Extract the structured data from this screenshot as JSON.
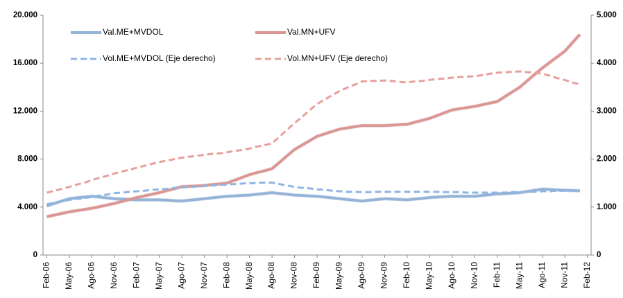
{
  "chart_data": {
    "type": "line",
    "categories": [
      "Feb-06",
      null,
      null,
      "May-06",
      null,
      null,
      "Ago-06",
      null,
      null,
      "Nov-06",
      null,
      null,
      "Feb-07",
      null,
      null,
      "May-07",
      null,
      null,
      "Ago-07",
      null,
      null,
      "Nov-07",
      null,
      null,
      "Feb-08",
      null,
      null,
      "May-08",
      null,
      null,
      "Ago-08",
      null,
      null,
      "Nov-08",
      null,
      null,
      "Feb-09",
      null,
      null,
      "May-09",
      null,
      null,
      "Ago-09",
      null,
      null,
      "Nov-09",
      null,
      null,
      "Feb-10",
      null,
      null,
      "May-10",
      null,
      null,
      "Ago-10",
      null,
      null,
      "Nov-10",
      null,
      null,
      "Feb-11",
      null,
      null,
      "May-11",
      null,
      null,
      "Ago-11",
      null,
      null,
      "Nov-11",
      null,
      null,
      "Feb-12"
    ],
    "series": [
      {
        "name": "Val.ME+MVDOL",
        "color": "#95b3d7",
        "style": "solid",
        "values": [
          4100,
          4300,
          4500,
          4700,
          4770,
          4830,
          4900,
          4830,
          4770,
          4700,
          4670,
          4630,
          4600,
          4600,
          4600,
          4600,
          4570,
          4530,
          4500,
          4570,
          4630,
          4700,
          4770,
          4830,
          4900,
          4930,
          4970,
          5000,
          5070,
          5130,
          5200,
          5130,
          5070,
          5000,
          4970,
          4930,
          4900,
          4830,
          4770,
          4700,
          4630,
          4570,
          4500,
          4570,
          4630,
          4700,
          4670,
          4630,
          4600,
          4670,
          4730,
          4800,
          4830,
          4870,
          4900,
          4900,
          4900,
          4900,
          4970,
          5030,
          5100,
          5130,
          5170,
          5200,
          5300,
          5400,
          5500,
          5470,
          5430,
          5400,
          5380,
          5350,
          null
        ]
      },
      {
        "name": "Val.MN+UFV",
        "color": "#d99694",
        "style": "solid",
        "values": [
          3200,
          3330,
          3470,
          3600,
          3700,
          3800,
          3900,
          4030,
          4170,
          4300,
          4470,
          4630,
          4800,
          4930,
          5070,
          5200,
          5370,
          5530,
          5700,
          5730,
          5770,
          5800,
          5870,
          5930,
          6000,
          6230,
          6470,
          6700,
          6870,
          7030,
          7200,
          7730,
          8270,
          8800,
          9170,
          9530,
          9900,
          10100,
          10300,
          10500,
          10600,
          10700,
          10800,
          10800,
          10800,
          10800,
          10830,
          10870,
          10900,
          11070,
          11230,
          11400,
          11630,
          11870,
          12100,
          12200,
          12300,
          12400,
          12530,
          12670,
          12800,
          13200,
          13600,
          14000,
          14530,
          15070,
          15600,
          16070,
          16530,
          17000,
          17700,
          18400,
          null
        ]
      },
      {
        "name": "Vol.ME+MVDOL (Eje derecho)",
        "color": "#8eb4e3",
        "style": "dashed",
        "axis": "y2",
        "values": [
          1060,
          1090,
          1120,
          1150,
          1170,
          1190,
          1210,
          1240,
          1260,
          1290,
          1300,
          1320,
          1330,
          1340,
          1360,
          1370,
          1380,
          1400,
          1410,
          1420,
          1430,
          1440,
          1450,
          1460,
          1470,
          1480,
          1490,
          1500,
          1500,
          1510,
          1510,
          1480,
          1450,
          1420,
          1400,
          1390,
          1370,
          1360,
          1340,
          1330,
          1320,
          1320,
          1310,
          1310,
          1320,
          1320,
          1320,
          1320,
          1320,
          1320,
          1320,
          1320,
          1320,
          1310,
          1310,
          1310,
          1300,
          1300,
          1300,
          1300,
          1300,
          1300,
          1310,
          1310,
          1320,
          1320,
          1330,
          1330,
          1340,
          1340,
          1340,
          1340,
          null
        ]
      },
      {
        "name": "Vol.MN+UFV (Eje derecho)",
        "color": "#e6a09c",
        "style": "dashed",
        "axis": "y2",
        "values": [
          1300,
          1340,
          1380,
          1420,
          1470,
          1510,
          1560,
          1610,
          1650,
          1700,
          1740,
          1780,
          1820,
          1860,
          1900,
          1940,
          1970,
          2000,
          2030,
          2050,
          2070,
          2090,
          2110,
          2120,
          2140,
          2170,
          2190,
          2220,
          2260,
          2290,
          2330,
          2470,
          2610,
          2750,
          2880,
          3020,
          3150,
          3240,
          3330,
          3420,
          3490,
          3550,
          3620,
          3630,
          3630,
          3640,
          3630,
          3610,
          3600,
          3620,
          3630,
          3650,
          3670,
          3680,
          3700,
          3710,
          3720,
          3730,
          3750,
          3780,
          3800,
          3810,
          3820,
          3830,
          3810,
          3800,
          3780,
          3740,
          3690,
          3650,
          3600,
          3560,
          null
        ]
      }
    ],
    "ylim": [
      0,
      20000
    ],
    "yticks": [
      0,
      {
        "value": 4000,
        "label": "4.000"
      },
      {
        "value": 8000,
        "label": "8.000"
      },
      {
        "value": 12000,
        "label": "12.000"
      },
      {
        "value": 16000,
        "label": "16.000"
      },
      {
        "value": 20000,
        "label": "20.000"
      }
    ],
    "y2lim": [
      0,
      5000
    ],
    "y2ticks": [
      0,
      {
        "value": 1000,
        "label": "1.000"
      },
      {
        "value": 2000,
        "label": "2.000"
      },
      {
        "value": 3000,
        "label": "3.000"
      },
      {
        "value": 4000,
        "label": "4.000"
      },
      {
        "value": 5000,
        "label": "5.000"
      }
    ],
    "grid": false,
    "legend": "top-left"
  }
}
